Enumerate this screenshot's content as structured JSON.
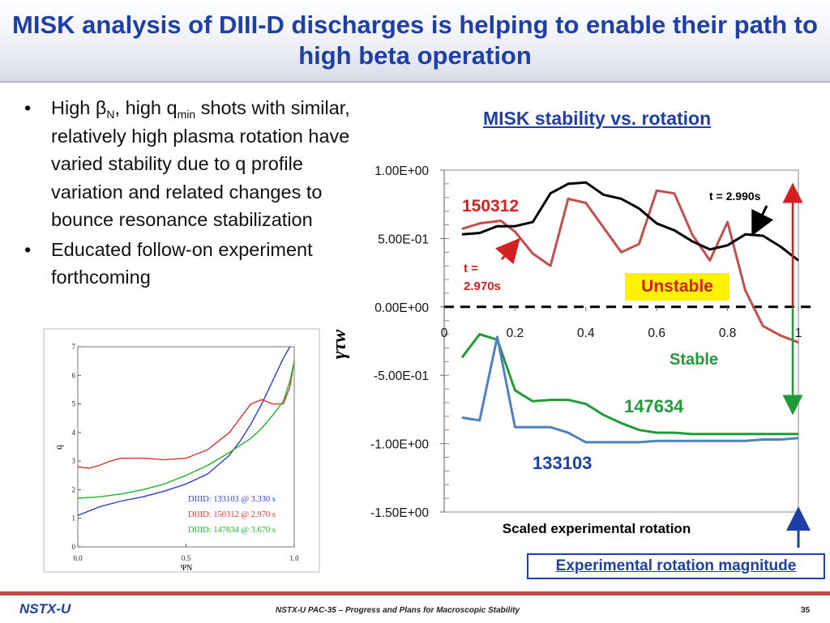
{
  "title": "MISK analysis of DIII-D discharges is helping to enable their path to high beta operation",
  "bullets": [
    {
      "parts": [
        "High β",
        "N",
        ", high q",
        "min",
        " shots with similar, relatively high plasma rotation have varied stability due to q profile variation and related changes to bounce resonance stabilization"
      ]
    },
    {
      "text": "Educated follow-on experiment forthcoming"
    }
  ],
  "bullet_glyph": "•",
  "footer": {
    "logo": "NSTX-U",
    "center": "NSTX-U PAC-35 – Progress and Plans for Macroscopic Stability",
    "page": "35"
  },
  "chart_data": [
    {
      "type": "line",
      "title": "MISK stability vs. rotation",
      "xlabel": "Scaled experimental rotation",
      "ylabel": "γτw",
      "xlim": [
        0,
        1
      ],
      "ylim": [
        -1.5,
        1.0
      ],
      "x_ticks": [
        "0",
        "0.2",
        "0.4",
        "0.6",
        "0.8",
        "1"
      ],
      "y_ticks": [
        "1.00E+00",
        "5.00E-01",
        "0.00E+00",
        "-5.00E-01",
        "-1.00E+00",
        "-1.50E+00"
      ],
      "y_tick_values": [
        1.0,
        0.5,
        0.0,
        -0.5,
        -1.0,
        -1.5
      ],
      "series": [
        {
          "name": "150312",
          "color": "#c0504d",
          "x": [
            0.05,
            0.1,
            0.16,
            0.2,
            0.25,
            0.3,
            0.35,
            0.4,
            0.45,
            0.5,
            0.55,
            0.6,
            0.65,
            0.7,
            0.75,
            0.8,
            0.85,
            0.9,
            0.95,
            1.0
          ],
          "y": [
            0.57,
            0.61,
            0.63,
            0.55,
            0.39,
            0.3,
            0.79,
            0.76,
            0.58,
            0.4,
            0.46,
            0.85,
            0.83,
            0.53,
            0.34,
            0.62,
            0.12,
            -0.14,
            -0.21,
            -0.26
          ]
        },
        {
          "name": "t = 2.990s",
          "color": "#000000",
          "x": [
            0.05,
            0.1,
            0.15,
            0.2,
            0.25,
            0.3,
            0.35,
            0.4,
            0.45,
            0.5,
            0.55,
            0.6,
            0.65,
            0.7,
            0.75,
            0.8,
            0.85,
            0.9,
            0.95,
            1.0
          ],
          "y": [
            0.53,
            0.54,
            0.59,
            0.59,
            0.62,
            0.83,
            0.9,
            0.91,
            0.82,
            0.79,
            0.72,
            0.61,
            0.56,
            0.48,
            0.42,
            0.45,
            0.53,
            0.52,
            0.44,
            0.34
          ]
        },
        {
          "name": "147634",
          "color": "#1f9b3a",
          "x": [
            0.05,
            0.1,
            0.15,
            0.2,
            0.25,
            0.3,
            0.35,
            0.4,
            0.45,
            0.5,
            0.55,
            0.6,
            0.65,
            0.7,
            0.75,
            0.8,
            0.85,
            0.9,
            0.95,
            1.0
          ],
          "y": [
            -0.37,
            -0.2,
            -0.24,
            -0.61,
            -0.69,
            -0.68,
            -0.68,
            -0.71,
            -0.79,
            -0.85,
            -0.9,
            -0.92,
            -0.92,
            -0.93,
            -0.93,
            -0.93,
            -0.93,
            -0.93,
            -0.93,
            -0.93
          ]
        },
        {
          "name": "133103",
          "color": "#4f81bd",
          "x": [
            0.05,
            0.1,
            0.15,
            0.2,
            0.25,
            0.3,
            0.35,
            0.4,
            0.45,
            0.5,
            0.55,
            0.6,
            0.65,
            0.7,
            0.75,
            0.8,
            0.85,
            0.9,
            0.95,
            1.0
          ],
          "y": [
            -0.81,
            -0.83,
            -0.22,
            -0.88,
            -0.88,
            -0.88,
            -0.92,
            -0.99,
            -0.99,
            -0.99,
            -0.99,
            -0.98,
            -0.98,
            -0.98,
            -0.98,
            -0.98,
            -0.98,
            -0.97,
            -0.97,
            -0.96
          ]
        }
      ],
      "annotations": {
        "label_150312": "150312",
        "label_t2990": "t = 2.990s",
        "label_t2970_a": "t =",
        "label_t2970_b": "2.970s",
        "unstable": "Unstable",
        "stable": "Stable",
        "label_147634": "147634",
        "label_133103": "133103",
        "exp_rotation": "Experimental rotation magnitude"
      },
      "colors": {
        "red": "#d42020",
        "green": "#1f9b3a",
        "blue": "#1d3fa6"
      }
    },
    {
      "type": "line",
      "xlabel": "ΨN",
      "ylabel": "q",
      "xlim": [
        0.0,
        1.0
      ],
      "ylim": [
        0,
        7
      ],
      "x_ticks": [
        "0.0",
        "0.5",
        "1.0"
      ],
      "y_ticks": [
        "0",
        "1",
        "2",
        "3",
        "4",
        "5",
        "6",
        "7"
      ],
      "series": [
        {
          "name": "DIIID: 133103 @ 3.330 s",
          "color": "#2a3dd6",
          "x": [
            0,
            0.1,
            0.2,
            0.3,
            0.4,
            0.5,
            0.6,
            0.7,
            0.75,
            0.8,
            0.85,
            0.9,
            0.95,
            0.98
          ],
          "y": [
            1.1,
            1.4,
            1.6,
            1.75,
            1.95,
            2.2,
            2.55,
            3.2,
            3.7,
            4.3,
            5.0,
            5.8,
            6.6,
            7.0
          ]
        },
        {
          "name": "DIIID: 150312 @ 2.970 s",
          "color": "#e03030",
          "x": [
            0,
            0.05,
            0.1,
            0.15,
            0.2,
            0.3,
            0.4,
            0.5,
            0.6,
            0.7,
            0.75,
            0.8,
            0.85,
            0.9,
            0.95,
            0.98,
            1.0
          ],
          "y": [
            2.8,
            2.75,
            2.85,
            3.0,
            3.1,
            3.1,
            3.05,
            3.1,
            3.4,
            4.0,
            4.5,
            5.0,
            5.15,
            5.0,
            5.0,
            5.6,
            6.5
          ]
        },
        {
          "name": "DIIID: 147634 @ 3.670 s",
          "color": "#1fb32e",
          "x": [
            0,
            0.1,
            0.2,
            0.3,
            0.4,
            0.5,
            0.6,
            0.7,
            0.8,
            0.85,
            0.9,
            0.95,
            0.98,
            1.0
          ],
          "y": [
            1.7,
            1.75,
            1.85,
            2.0,
            2.2,
            2.5,
            2.85,
            3.3,
            3.8,
            4.15,
            4.6,
            5.1,
            5.8,
            6.5
          ]
        }
      ]
    }
  ]
}
